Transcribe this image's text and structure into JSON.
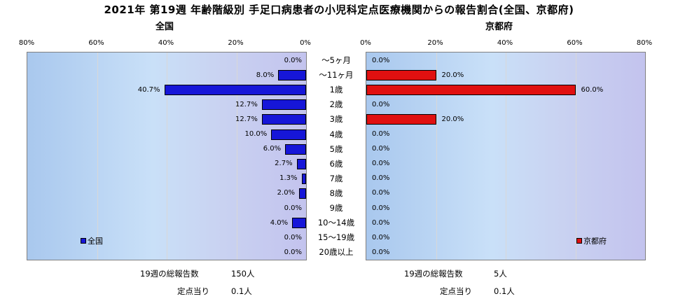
{
  "title": "2021年 第19週 年齢階級別 手足口病患者の小児科定点医療機関からの報告割合(全国、京都府)",
  "chart_data": [
    {
      "type": "bar",
      "orientation": "horizontal",
      "subtitle": "全国",
      "direction": "right-to-left",
      "xlim": [
        0,
        80
      ],
      "ticks": [
        "80%",
        "60%",
        "40%",
        "20%",
        "0%"
      ],
      "grid": true,
      "legend": "全国",
      "legend_position": "bottom-left",
      "color": "#1616d8",
      "categories": [
        "～5ヶ月",
        "～11ヶ月",
        "1歳",
        "2歳",
        "3歳",
        "4歳",
        "5歳",
        "6歳",
        "7歳",
        "8歳",
        "9歳",
        "10～14歳",
        "15～19歳",
        "20歳以上"
      ],
      "values": [
        0.0,
        8.0,
        40.7,
        12.7,
        12.7,
        10.0,
        6.0,
        2.7,
        1.3,
        2.0,
        0.0,
        4.0,
        0.0,
        0.0
      ],
      "labels": [
        "0.0%",
        "8.0%",
        "40.7%",
        "12.7%",
        "12.7%",
        "10.0%",
        "6.0%",
        "2.7%",
        "1.3%",
        "2.0%",
        "0.0%",
        "4.0%",
        "0.0%",
        "0.0%"
      ]
    },
    {
      "type": "bar",
      "orientation": "horizontal",
      "subtitle": "京都府",
      "direction": "left-to-right",
      "xlim": [
        0,
        80
      ],
      "ticks": [
        "0%",
        "20%",
        "40%",
        "60%",
        "80%"
      ],
      "grid": true,
      "legend": "京都府",
      "legend_position": "bottom-right",
      "color": "#e01010",
      "categories": [
        "～5ヶ月",
        "～11ヶ月",
        "1歳",
        "2歳",
        "3歳",
        "4歳",
        "5歳",
        "6歳",
        "7歳",
        "8歳",
        "9歳",
        "10～14歳",
        "15～19歳",
        "20歳以上"
      ],
      "values": [
        0.0,
        20.0,
        60.0,
        0.0,
        20.0,
        0.0,
        0.0,
        0.0,
        0.0,
        0.0,
        0.0,
        0.0,
        0.0,
        0.0
      ],
      "labels": [
        "0.0%",
        "20.0%",
        "60.0%",
        "0.0%",
        "20.0%",
        "0.0%",
        "0.0%",
        "0.0%",
        "0.0%",
        "0.0%",
        "0.0%",
        "0.0%",
        "0.0%",
        "0.0%"
      ]
    }
  ],
  "footer": {
    "national": {
      "total_label": "19週の総報告数",
      "total_value": "150人",
      "per_label": "定点当り",
      "per_value": "0.1人"
    },
    "kyoto": {
      "total_label": "19週の総報告数",
      "total_value": "5人",
      "per_label": "定点当り",
      "per_value": "0.1人"
    }
  }
}
